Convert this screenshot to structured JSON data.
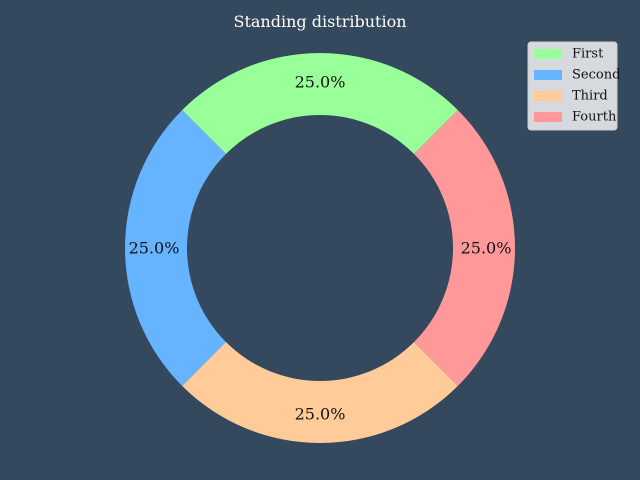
{
  "chart_data": {
    "type": "pie",
    "title": "Standing distribution",
    "donut": true,
    "categories": [
      "First",
      "Second",
      "Third",
      "Fourth"
    ],
    "values": [
      25.0,
      25.0,
      25.0,
      25.0
    ],
    "data_labels": [
      "25.0%",
      "25.0%",
      "25.0%",
      "25.0%"
    ],
    "colors": [
      "#99ff99",
      "#66b3ff",
      "#ffcc99",
      "#ff9999"
    ],
    "legend_position": "top-right"
  },
  "background_color": "#34495e"
}
